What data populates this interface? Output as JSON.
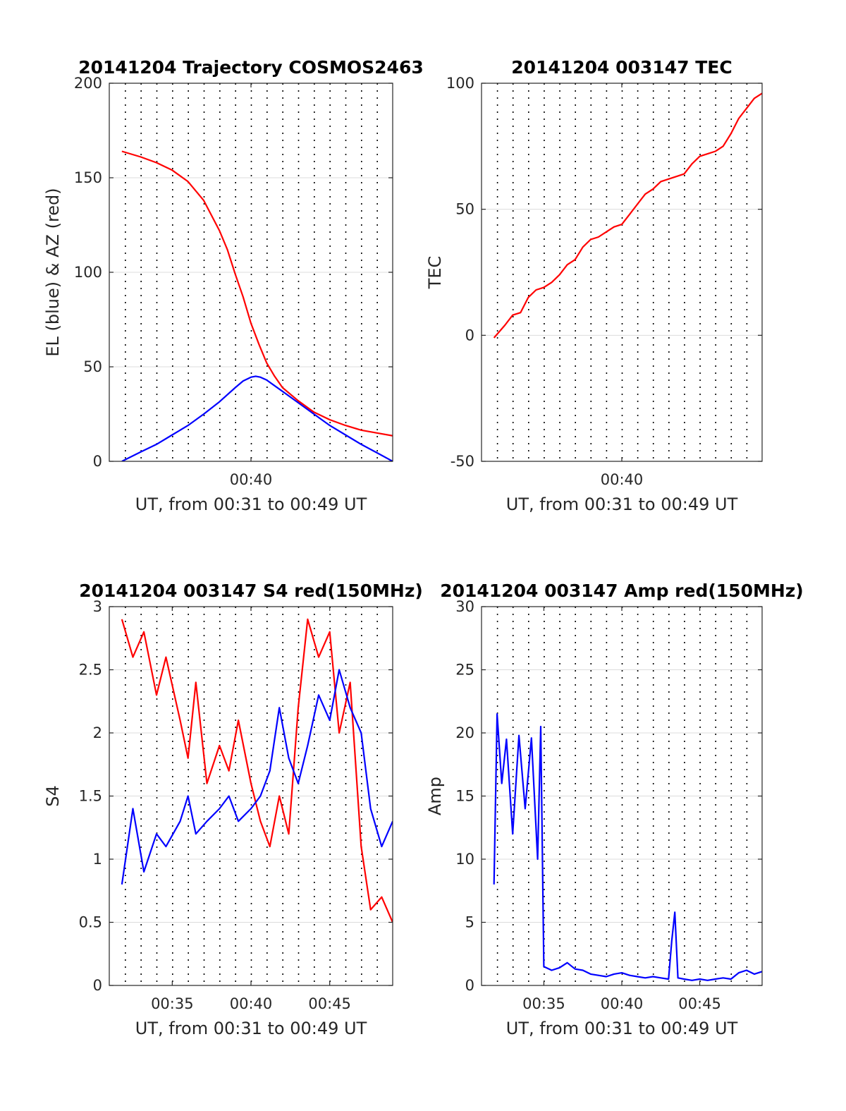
{
  "figure": {
    "background": "#ffffff",
    "axis_color": "#262626",
    "grid_color": "#dcdcdc",
    "vgrid_color": "#000000"
  },
  "chart_data": [
    {
      "type": "line",
      "title": "20141204 Trajectory COSMOS2463",
      "xlabel": "UT, from 00:31 to 00:49 UT",
      "ylabel": "EL (blue) & AZ (red)",
      "xlim": [
        31,
        49
      ],
      "ylim": [
        0,
        200
      ],
      "yticks": [
        0,
        50,
        100,
        150,
        200
      ],
      "ytick_labels": [
        "0",
        "50",
        "100",
        "150",
        "200"
      ],
      "xticks": [
        40
      ],
      "xtick_labels": [
        "00:40"
      ],
      "dotted_grid_minutes": [
        32,
        33,
        34,
        35,
        36,
        37,
        38,
        39,
        40,
        41,
        42,
        43,
        44,
        45,
        46,
        47,
        48
      ],
      "grid": true,
      "series": [
        {
          "name": "AZ",
          "color": "#ff0000",
          "x": [
            31.8,
            33,
            34,
            35,
            36,
            37,
            38,
            38.5,
            39,
            39.5,
            40,
            40.5,
            41,
            41.5,
            42,
            43,
            44,
            45,
            46,
            47,
            48,
            49
          ],
          "y": [
            164,
            161,
            158,
            154,
            148,
            138,
            122,
            112,
            99,
            87,
            73,
            62,
            52,
            45,
            39,
            32,
            26,
            22,
            19,
            16.5,
            15,
            13.5
          ]
        },
        {
          "name": "EL",
          "color": "#0000ff",
          "x": [
            31.8,
            33,
            34,
            35,
            36,
            37,
            38,
            39,
            39.5,
            40,
            40.3,
            40.6,
            41,
            42,
            43,
            44,
            45,
            46,
            47,
            48,
            49
          ],
          "y": [
            0,
            5,
            9,
            14,
            19,
            25,
            31.5,
            39,
            42.5,
            44.5,
            45,
            44.5,
            43,
            37,
            31,
            25,
            19,
            14,
            9,
            4.5,
            0
          ]
        }
      ]
    },
    {
      "type": "line",
      "title": "20141204 003147 TEC",
      "xlabel": "UT, from 00:31 to 00:49 UT",
      "ylabel": "TEC",
      "xlim": [
        31,
        49
      ],
      "ylim": [
        -50,
        100
      ],
      "yticks": [
        -50,
        0,
        50,
        100
      ],
      "ytick_labels": [
        "-50",
        "0",
        "50",
        "100"
      ],
      "xticks": [
        40
      ],
      "xtick_labels": [
        "00:40"
      ],
      "dotted_grid_minutes": [
        32,
        33,
        34,
        35,
        36,
        37,
        38,
        39,
        40,
        41,
        42,
        43,
        44,
        45,
        46,
        47,
        48
      ],
      "grid": true,
      "series": [
        {
          "name": "TEC",
          "color": "#ff0000",
          "x": [
            31.8,
            32.5,
            33,
            33.5,
            34,
            34.5,
            35,
            35.5,
            36,
            36.5,
            37,
            37.5,
            38,
            38.5,
            39,
            39.5,
            40,
            40.5,
            41,
            41.5,
            42,
            42.5,
            43,
            43.5,
            44,
            44.5,
            45,
            45.5,
            46,
            46.5,
            47,
            47.5,
            48,
            48.5,
            49
          ],
          "y": [
            -1,
            4,
            8,
            9,
            15,
            18,
            19,
            21,
            24,
            28,
            30,
            35,
            38,
            39,
            41,
            43,
            44,
            48,
            52,
            56,
            58,
            61,
            62,
            63,
            64,
            68,
            71,
            72,
            73,
            75,
            80,
            86,
            90,
            94,
            96
          ]
        }
      ]
    },
    {
      "type": "line",
      "title": "20141204 003147 S4 red(150MHz)",
      "xlabel": "UT, from 00:31 to 00:49 UT",
      "ylabel": "S4",
      "xlim": [
        31,
        49
      ],
      "ylim": [
        0,
        3
      ],
      "yticks": [
        0,
        0.5,
        1,
        1.5,
        2,
        2.5,
        3
      ],
      "ytick_labels": [
        "0",
        "0.5",
        "1",
        "1.5",
        "2",
        "2.5",
        "3"
      ],
      "xticks": [
        35,
        40,
        45
      ],
      "xtick_labels": [
        "00:35",
        "00:40",
        "00:45"
      ],
      "dotted_grid_minutes": [
        32,
        33,
        34,
        35,
        36,
        37,
        38,
        39,
        40,
        41,
        42,
        43,
        44,
        45,
        46,
        47,
        48
      ],
      "grid": true,
      "series": [
        {
          "name": "S4 red",
          "color": "#ff0000",
          "x": [
            31.8,
            32.5,
            33.2,
            34,
            34.6,
            35.5,
            36,
            36.5,
            37.2,
            38,
            38.6,
            39.2,
            40,
            40.6,
            41.2,
            41.8,
            42.4,
            43,
            43.6,
            44.3,
            45,
            45.6,
            46.3,
            47,
            47.6,
            48.3,
            49
          ],
          "y": [
            2.9,
            2.6,
            2.8,
            2.3,
            2.6,
            2.1,
            1.8,
            2.4,
            1.6,
            1.9,
            1.7,
            2.1,
            1.6,
            1.3,
            1.1,
            1.5,
            1.2,
            2.2,
            2.9,
            2.6,
            2.8,
            2.0,
            2.4,
            1.1,
            0.6,
            0.7,
            0.5
          ]
        },
        {
          "name": "S4 blue",
          "color": "#0000ff",
          "x": [
            31.8,
            32.5,
            33.2,
            34,
            34.6,
            35.5,
            36,
            36.5,
            37.2,
            38,
            38.6,
            39.2,
            40,
            40.6,
            41.2,
            41.8,
            42.4,
            43,
            43.6,
            44.3,
            45,
            45.6,
            46.3,
            47,
            47.6,
            48.3,
            49
          ],
          "y": [
            0.8,
            1.4,
            0.9,
            1.2,
            1.1,
            1.3,
            1.5,
            1.2,
            1.3,
            1.4,
            1.5,
            1.3,
            1.4,
            1.5,
            1.7,
            2.2,
            1.8,
            1.6,
            1.9,
            2.3,
            2.1,
            2.5,
            2.2,
            2.0,
            1.4,
            1.1,
            1.3
          ]
        }
      ]
    },
    {
      "type": "line",
      "title": "20141204 003147 Amp red(150MHz)",
      "xlabel": "UT, from 00:31 to 00:49 UT",
      "ylabel": "Amp",
      "xlim": [
        31,
        49
      ],
      "ylim": [
        0,
        30
      ],
      "yticks": [
        0,
        5,
        10,
        15,
        20,
        25,
        30
      ],
      "ytick_labels": [
        "0",
        "5",
        "10",
        "15",
        "20",
        "25",
        "30"
      ],
      "xticks": [
        35,
        40,
        45
      ],
      "xtick_labels": [
        "00:35",
        "00:40",
        "00:45"
      ],
      "dotted_grid_minutes": [
        32,
        33,
        34,
        35,
        36,
        37,
        38,
        39,
        40,
        41,
        42,
        43,
        44,
        45,
        46,
        47,
        48
      ],
      "grid": true,
      "series": [
        {
          "name": "Amp",
          "color": "#0000ff",
          "x": [
            31.8,
            32.0,
            32.3,
            32.6,
            33.0,
            33.4,
            33.8,
            34.2,
            34.6,
            34.8,
            35.0,
            35.5,
            36.0,
            36.5,
            37.0,
            37.5,
            38.0,
            38.5,
            39.0,
            39.5,
            40.0,
            40.5,
            41.0,
            41.5,
            42.0,
            42.5,
            43.0,
            43.2,
            43.4,
            43.6,
            44.0,
            44.5,
            45.0,
            45.5,
            46.0,
            46.5,
            47.0,
            47.5,
            48.0,
            48.5,
            49.0
          ],
          "y": [
            8,
            21.5,
            16,
            19.5,
            12,
            19.8,
            14,
            19.6,
            10,
            20.5,
            1.5,
            1.2,
            1.4,
            1.8,
            1.3,
            1.2,
            0.9,
            0.8,
            0.7,
            0.9,
            1.0,
            0.8,
            0.7,
            0.6,
            0.7,
            0.6,
            0.5,
            3.5,
            5.8,
            0.6,
            0.5,
            0.4,
            0.5,
            0.4,
            0.5,
            0.6,
            0.5,
            1.0,
            1.2,
            0.9,
            1.1
          ]
        }
      ]
    }
  ]
}
